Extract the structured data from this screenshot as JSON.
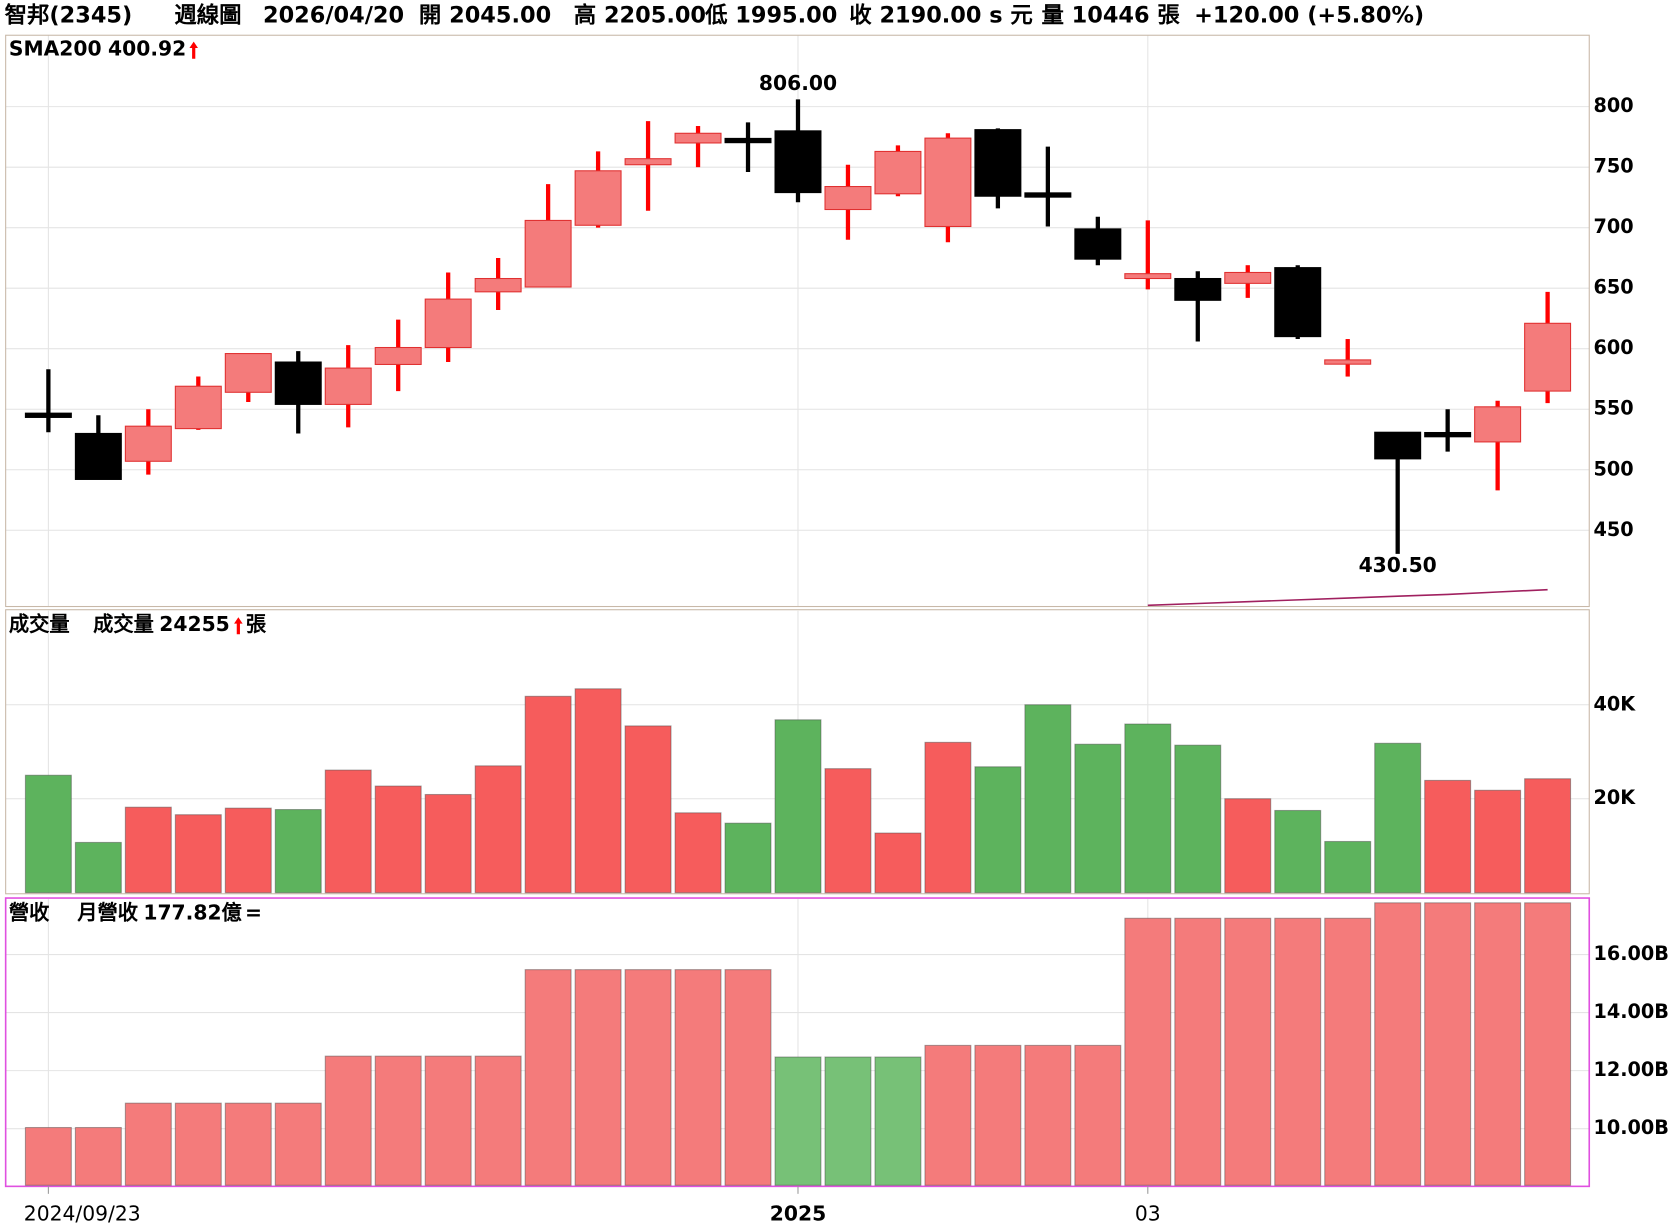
{
  "header": {
    "name": "智邦(2345)",
    "period": "週線圖",
    "date": "2026/04/20",
    "open": "開 2045.00",
    "high": "高 2205.00",
    "low": "低 1995.00",
    "close": "收 2190.00 s 元",
    "volume": "量 10446 張",
    "change": "+120.00 (+5.80%)"
  },
  "chart_data": [
    {
      "type": "candlestick",
      "categories": [
        "2024/09/23",
        null,
        null,
        null,
        null,
        null,
        null,
        null,
        null,
        null,
        null,
        null,
        null,
        null,
        null,
        "2025",
        null,
        null,
        null,
        null,
        null,
        null,
        "03",
        null,
        null,
        null,
        null,
        null,
        null,
        null,
        null
      ],
      "open": [
        545,
        530,
        507,
        534,
        564,
        589,
        554,
        587,
        601,
        647,
        651,
        702,
        752,
        770,
        772,
        780,
        715,
        728,
        701,
        781,
        727,
        699,
        658,
        658,
        654,
        667,
        587,
        531,
        529,
        523,
        565
      ],
      "high": [
        583,
        545,
        550,
        577,
        596,
        598,
        603,
        624,
        663,
        675,
        736,
        763,
        788,
        784,
        787,
        806,
        752,
        768,
        778,
        782,
        767,
        709,
        706,
        664,
        669,
        669,
        608,
        531,
        550,
        557,
        647
      ],
      "low": [
        531,
        492,
        496,
        533,
        556,
        530,
        535,
        565,
        589,
        632,
        651,
        700,
        714,
        750,
        746,
        721,
        690,
        726,
        688,
        716,
        701,
        669,
        649,
        606,
        642,
        608,
        577,
        430.5,
        515,
        483,
        555
      ],
      "close": [
        544,
        492,
        536,
        569,
        596,
        554,
        584,
        601,
        641,
        658,
        706,
        747,
        757,
        778,
        770,
        729,
        734,
        763,
        774,
        726,
        725,
        674,
        662,
        640,
        663,
        610,
        589,
        509,
        527,
        552,
        621
      ],
      "up_color": "#f47b7b",
      "up_line_color": "#ff0000",
      "down_color": "#000000",
      "ylim": [
        387,
        859
      ],
      "yticks": [
        450,
        500,
        550,
        600,
        650,
        700,
        750,
        800
      ],
      "grid": true,
      "annotations": [
        {
          "value": 806,
          "label": "806.00"
        },
        {
          "value": 430.5,
          "label": "430.50"
        }
      ],
      "series": [
        {
          "name": "SMA200",
          "color": "#a0205f",
          "values": [
            null,
            null,
            null,
            null,
            null,
            null,
            null,
            null,
            null,
            null,
            null,
            null,
            null,
            null,
            null,
            null,
            null,
            null,
            null,
            null,
            null,
            null,
            388,
            389.5,
            391,
            392.5,
            394,
            395.5,
            397,
            399,
            400.92
          ],
          "value_labels": [
            null,
            null,
            null,
            null,
            null,
            null,
            null,
            null,
            null,
            null,
            null,
            null,
            null,
            null,
            null,
            null,
            null,
            null,
            null,
            null,
            null,
            null,
            null,
            null,
            null,
            null,
            null,
            null,
            null,
            null,
            "400.92"
          ]
        }
      ]
    },
    {
      "type": "bar",
      "title": "成交量",
      "series": [
        {
          "name": "成交量",
          "unit": "張",
          "color": "#000000",
          "values": [
            25000,
            10700,
            18200,
            16600,
            18000,
            17700,
            26100,
            22700,
            20900,
            27000,
            41800,
            43400,
            35500,
            17000,
            14800,
            36800,
            26400,
            12700,
            32000,
            26800,
            40000,
            31600,
            35900,
            31400,
            20000,
            17500,
            10900,
            31800,
            23900,
            21800,
            24255
          ],
          "value_labels": [
            null,
            null,
            null,
            null,
            null,
            null,
            null,
            null,
            null,
            null,
            null,
            null,
            null,
            null,
            null,
            null,
            null,
            null,
            null,
            null,
            null,
            null,
            null,
            null,
            null,
            null,
            null,
            null,
            null,
            null,
            "24255"
          ],
          "colors": [
            "#5db35d",
            "#5db35d",
            "#f65c5c",
            "#f65c5c",
            "#f65c5c",
            "#5db35d",
            "#f65c5c",
            "#f65c5c",
            "#f65c5c",
            "#f65c5c",
            "#f65c5c",
            "#f65c5c",
            "#f65c5c",
            "#f65c5c",
            "#5db35d",
            "#5db35d",
            "#f65c5c",
            "#f65c5c",
            "#f65c5c",
            "#5db35d",
            "#5db35d",
            "#5db35d",
            "#5db35d",
            "#5db35d",
            "#f65c5c",
            "#5db35d",
            "#5db35d",
            "#5db35d",
            "#f65c5c",
            "#f65c5c",
            "#f65c5c"
          ]
        }
      ],
      "ylim": [
        0,
        60000
      ],
      "yticks": [
        {
          "value": 20000,
          "label": "20K"
        },
        {
          "value": 40000,
          "label": "40K"
        }
      ],
      "grid": true
    },
    {
      "type": "bar",
      "title": "營收",
      "series": [
        {
          "name": "月營收",
          "color": "#f060a0",
          "trend_symbol": "=",
          "values": [
            10.04,
            10.04,
            10.88,
            10.88,
            10.88,
            10.88,
            12.5,
            12.5,
            12.5,
            12.5,
            15.48,
            15.48,
            15.48,
            15.48,
            15.48,
            12.47,
            12.47,
            12.47,
            12.87,
            12.87,
            12.87,
            12.87,
            17.25,
            17.25,
            17.25,
            17.25,
            17.25,
            17.782,
            17.782,
            17.782,
            17.782
          ],
          "value_labels": [
            null,
            null,
            null,
            null,
            null,
            null,
            null,
            null,
            null,
            null,
            null,
            null,
            null,
            null,
            null,
            null,
            null,
            null,
            null,
            null,
            null,
            null,
            null,
            null,
            null,
            null,
            null,
            null,
            null,
            null,
            "177.82億"
          ],
          "colors": [
            "#f47b7b",
            "#f47b7b",
            "#f47b7b",
            "#f47b7b",
            "#f47b7b",
            "#f47b7b",
            "#f47b7b",
            "#f47b7b",
            "#f47b7b",
            "#f47b7b",
            "#f47b7b",
            "#f47b7b",
            "#f47b7b",
            "#f47b7b",
            "#f47b7b",
            "#77c177",
            "#77c177",
            "#77c177",
            "#f47b7b",
            "#f47b7b",
            "#f47b7b",
            "#f47b7b",
            "#f47b7b",
            "#f47b7b",
            "#f47b7b",
            "#f47b7b",
            "#f47b7b",
            "#f47b7b",
            "#f47b7b",
            "#f47b7b",
            "#f47b7b"
          ]
        }
      ],
      "ylim": [
        8.05,
        17.91
      ],
      "yticks": [
        {
          "value": 10,
          "label": "10.00B"
        },
        {
          "value": 12,
          "label": "12.00B"
        },
        {
          "value": 14,
          "label": "14.00B"
        },
        {
          "value": 16,
          "label": "16.00B"
        }
      ],
      "grid": true
    }
  ]
}
